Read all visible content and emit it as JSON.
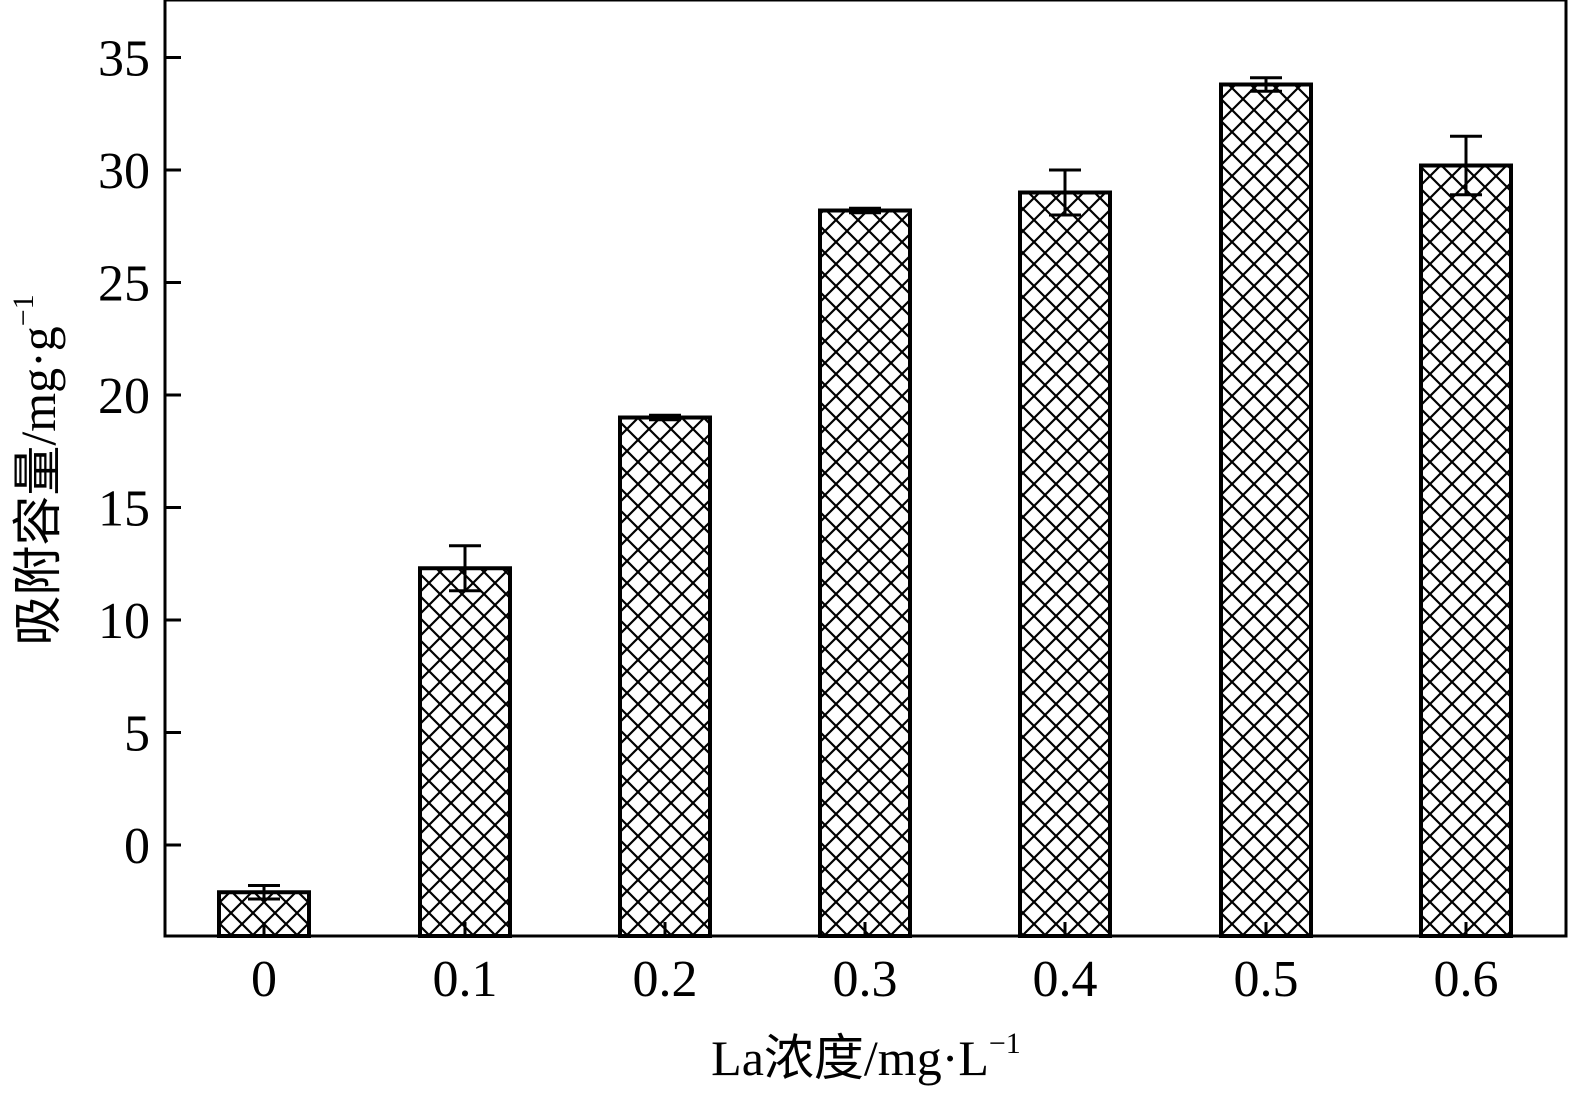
{
  "chart_data": {
    "type": "bar",
    "xlabel": "La浓度/mg·L",
    "xlabel_sup": "−1",
    "ylabel": "吸附容量/mg·g",
    "ylabel_sup": "−1",
    "categories": [
      "0",
      "0.1",
      "0.2",
      "0.3",
      "0.4",
      "0.5",
      "0.6"
    ],
    "values": [
      -2.1,
      12.3,
      19.0,
      28.2,
      29.0,
      33.8,
      30.2
    ],
    "errors": [
      0.3,
      1.0,
      0.1,
      0.1,
      1.0,
      0.3,
      1.3
    ],
    "ylim": [
      -4,
      37
    ],
    "yticks": [
      0,
      5,
      10,
      15,
      20,
      25,
      30,
      35
    ],
    "bar_pattern": "crosshatch",
    "grid": false,
    "legend": "none",
    "colors": {
      "bar_fill": "#ffffff",
      "bar_edge": "#000000",
      "hatch": "#000000"
    }
  }
}
